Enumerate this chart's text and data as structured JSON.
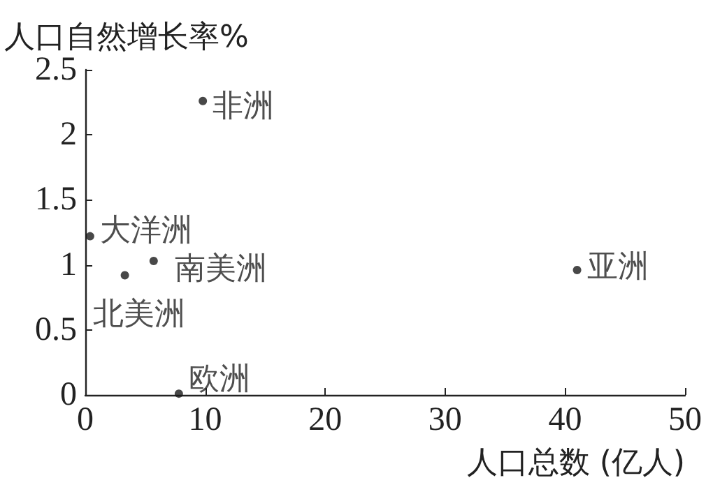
{
  "chart_data": {
    "type": "scatter",
    "xlabel": "人口总数 (亿人)",
    "ylabel": "人口自然增长率%",
    "x": [
      9.8,
      0.4,
      5.7,
      3.3,
      41.0,
      7.8
    ],
    "values": [
      2.26,
      1.22,
      1.03,
      0.92,
      0.96,
      0.01
    ],
    "color": "#1a1a1a",
    "marker": "circle",
    "annotations": [
      {
        "text": "非洲",
        "x": 9.8,
        "y": 2.26
      },
      {
        "text": "大洋洲",
        "x": 0.4,
        "y": 1.22
      },
      {
        "text": "南美洲",
        "x": 5.7,
        "y": 1.03
      },
      {
        "text": "北美洲",
        "x": 3.3,
        "y": 0.92
      },
      {
        "text": "亚洲",
        "x": 41.0,
        "y": 0.96
      },
      {
        "text": "欧洲",
        "x": 7.8,
        "y": 0.01
      }
    ],
    "xlim": [
      0,
      50
    ],
    "ylim": [
      0,
      2.5
    ],
    "xticks": [
      0,
      10,
      20,
      30,
      40,
      50
    ],
    "yticks": [
      0,
      0.5,
      1,
      1.5,
      2,
      2.5
    ],
    "grid": false
  }
}
